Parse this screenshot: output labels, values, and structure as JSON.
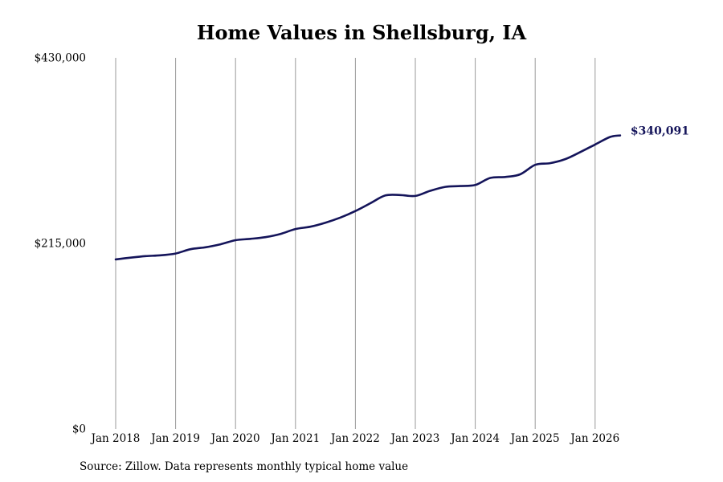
{
  "chart_data": {
    "type": "line",
    "title": "Home Values in Shellsburg, IA",
    "source": "Source: Zillow. Data represents monthly typical home value",
    "y_ticks": [
      {
        "value": 0,
        "label": "$0"
      },
      {
        "value": 215000,
        "label": "$215,000"
      },
      {
        "value": 430000,
        "label": "$430,000"
      }
    ],
    "ylim": [
      0,
      430000
    ],
    "x_ticks": [
      {
        "value": "2018-01",
        "label": "Jan 2018"
      },
      {
        "value": "2019-01",
        "label": "Jan 2019"
      },
      {
        "value": "2020-01",
        "label": "Jan 2020"
      },
      {
        "value": "2021-01",
        "label": "Jan 2021"
      },
      {
        "value": "2022-01",
        "label": "Jan 2022"
      },
      {
        "value": "2023-01",
        "label": "Jan 2023"
      },
      {
        "value": "2024-01",
        "label": "Jan 2024"
      },
      {
        "value": "2025-01",
        "label": "Jan 2025"
      },
      {
        "value": "2026-01",
        "label": "Jan 2026"
      }
    ],
    "xlim": [
      "2018-01",
      "2026-06"
    ],
    "grid": "vertical",
    "colors": {
      "line": "#14145a",
      "grid": "#999999",
      "text": "#000000"
    },
    "series": [
      {
        "color": "#14145a",
        "end_label": "$340,091",
        "points": [
          {
            "x": "2018-01",
            "y": 196500
          },
          {
            "x": "2018-04",
            "y": 198500
          },
          {
            "x": "2018-07",
            "y": 200300
          },
          {
            "x": "2018-10",
            "y": 201200
          },
          {
            "x": "2019-01",
            "y": 203300
          },
          {
            "x": "2019-04",
            "y": 208300
          },
          {
            "x": "2019-07",
            "y": 210500
          },
          {
            "x": "2019-10",
            "y": 214000
          },
          {
            "x": "2020-01",
            "y": 218700
          },
          {
            "x": "2020-04",
            "y": 220300
          },
          {
            "x": "2020-07",
            "y": 222300
          },
          {
            "x": "2020-10",
            "y": 226000
          },
          {
            "x": "2021-01",
            "y": 231700
          },
          {
            "x": "2021-04",
            "y": 234400
          },
          {
            "x": "2021-07",
            "y": 239000
          },
          {
            "x": "2021-10",
            "y": 245000
          },
          {
            "x": "2022-01",
            "y": 252500
          },
          {
            "x": "2022-04",
            "y": 261500
          },
          {
            "x": "2022-07",
            "y": 270600
          },
          {
            "x": "2022-10",
            "y": 271000
          },
          {
            "x": "2023-01",
            "y": 270000
          },
          {
            "x": "2023-04",
            "y": 276000
          },
          {
            "x": "2023-07",
            "y": 280500
          },
          {
            "x": "2023-10",
            "y": 281500
          },
          {
            "x": "2024-01",
            "y": 282700
          },
          {
            "x": "2024-04",
            "y": 290900
          },
          {
            "x": "2024-07",
            "y": 292000
          },
          {
            "x": "2024-10",
            "y": 295000
          },
          {
            "x": "2025-01",
            "y": 306000
          },
          {
            "x": "2025-04",
            "y": 308000
          },
          {
            "x": "2025-07",
            "y": 312600
          },
          {
            "x": "2025-10",
            "y": 320700
          },
          {
            "x": "2026-01",
            "y": 329600
          },
          {
            "x": "2026-04",
            "y": 338300
          },
          {
            "x": "2026-06",
            "y": 340091
          }
        ]
      }
    ]
  }
}
